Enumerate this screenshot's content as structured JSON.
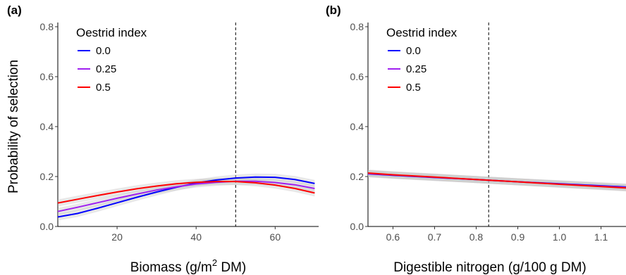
{
  "chart_data": [
    {
      "type": "line",
      "panel_label": "(a)",
      "xlabel": "Biomass (g/m² DM)",
      "ylabel": "Probability of selection",
      "xlim": [
        5,
        71
      ],
      "ylim": [
        0,
        0.8
      ],
      "xticks": [
        20,
        40,
        60
      ],
      "yticks": [
        0.0,
        0.2,
        0.4,
        0.6,
        0.8
      ],
      "reference_line": 50,
      "legend": {
        "title": "Oestrid index",
        "placement": "top-left"
      },
      "series": [
        {
          "name": "0.0",
          "color": "#0000ff",
          "x": [
            5,
            10,
            15,
            20,
            25,
            30,
            35,
            40,
            45,
            50,
            55,
            60,
            65,
            70
          ],
          "y": [
            0.038,
            0.052,
            0.073,
            0.095,
            0.117,
            0.138,
            0.157,
            0.174,
            0.186,
            0.194,
            0.198,
            0.197,
            0.188,
            0.172
          ]
        },
        {
          "name": "0.25",
          "color": "#a020f0",
          "x": [
            5,
            10,
            15,
            20,
            25,
            30,
            35,
            40,
            45,
            50,
            55,
            60,
            65,
            70
          ],
          "y": [
            0.06,
            0.077,
            0.095,
            0.113,
            0.13,
            0.146,
            0.159,
            0.17,
            0.177,
            0.181,
            0.181,
            0.176,
            0.167,
            0.152
          ]
        },
        {
          "name": "0.5",
          "color": "#ff0000",
          "x": [
            5,
            10,
            15,
            20,
            25,
            30,
            35,
            40,
            45,
            50,
            55,
            60,
            65,
            70
          ],
          "y": [
            0.094,
            0.109,
            0.124,
            0.138,
            0.151,
            0.162,
            0.171,
            0.177,
            0.18,
            0.18,
            0.175,
            0.166,
            0.152,
            0.134
          ]
        }
      ]
    },
    {
      "type": "line",
      "panel_label": "(b)",
      "xlabel": "Digestible nitrogen (g/100 g DM)",
      "ylabel": "",
      "xlim": [
        0.54,
        1.16
      ],
      "ylim": [
        0,
        0.8
      ],
      "xticks": [
        0.6,
        0.7,
        0.8,
        0.9,
        1.0,
        1.1
      ],
      "xtick_labels": [
        "0.6",
        "0.7",
        "0.8",
        "0.9",
        "1.0",
        "1.1"
      ],
      "yticks": [
        0.0,
        0.2,
        0.4,
        0.6,
        0.8
      ],
      "reference_line": 0.83,
      "legend": {
        "title": "Oestrid index",
        "placement": "top-left"
      },
      "series": [
        {
          "name": "0.0",
          "color": "#0000ff",
          "x": [
            0.54,
            0.6,
            0.7,
            0.8,
            0.9,
            1.0,
            1.1,
            1.16
          ],
          "y": [
            0.211,
            0.205,
            0.196,
            0.188,
            0.179,
            0.171,
            0.163,
            0.158
          ]
        },
        {
          "name": "0.25",
          "color": "#a020f0",
          "x": [
            0.54,
            0.6,
            0.7,
            0.8,
            0.9,
            1.0,
            1.1,
            1.16
          ],
          "y": [
            0.212,
            0.206,
            0.197,
            0.188,
            0.179,
            0.17,
            0.161,
            0.156
          ]
        },
        {
          "name": "0.5",
          "color": "#ff0000",
          "x": [
            0.54,
            0.6,
            0.7,
            0.8,
            0.9,
            1.0,
            1.1,
            1.16
          ],
          "y": [
            0.214,
            0.207,
            0.198,
            0.188,
            0.179,
            0.169,
            0.16,
            0.154
          ]
        }
      ]
    }
  ]
}
